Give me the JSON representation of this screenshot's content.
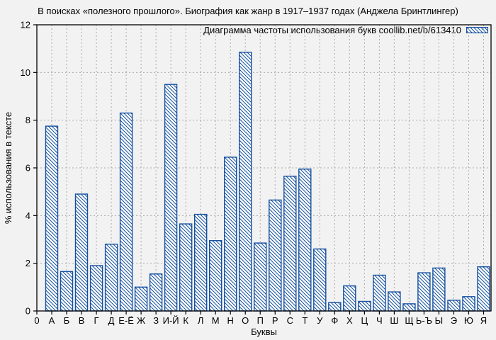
{
  "chart_data": {
    "type": "bar",
    "title": "В поисках «полезного прошлого». Биография как жанр в 1917–1937 годах (Анджела Бринтлингер)",
    "legend": "Диаграмма частоты использования букв coollib.net/b/613410",
    "xlabel": "Буквы",
    "ylabel": "% использования в тексте",
    "origin_label": "0",
    "categories": [
      "А",
      "Б",
      "В",
      "Г",
      "Д",
      "Е-Ё",
      "Ж",
      "З",
      "И-Й",
      "К",
      "Л",
      "М",
      "Н",
      "О",
      "П",
      "Р",
      "С",
      "Т",
      "У",
      "Ф",
      "Х",
      "Ц",
      "Ч",
      "Ш",
      "Щ",
      "Ь-Ъ",
      "Ы",
      "Э",
      "Ю",
      "Я"
    ],
    "values": [
      7.75,
      1.65,
      4.9,
      1.9,
      2.8,
      8.3,
      1.0,
      1.55,
      9.5,
      3.65,
      4.05,
      2.95,
      6.45,
      10.85,
      2.85,
      4.65,
      5.65,
      5.95,
      2.6,
      0.35,
      1.05,
      0.4,
      1.5,
      0.8,
      0.3,
      1.6,
      1.8,
      0.45,
      0.6,
      1.85
    ],
    "ylim": [
      0,
      12
    ],
    "yticks": [
      0,
      2,
      4,
      6,
      8,
      10,
      12
    ],
    "grid": true,
    "hatch": "\\",
    "legend_position": "top-right",
    "colors": {
      "bar_edge": "#1450a0",
      "bar_fill": "#ffffff",
      "grid": "#aaaaaa",
      "axis": "#000000",
      "text": "#000000",
      "background": "#f2f2f2"
    }
  }
}
